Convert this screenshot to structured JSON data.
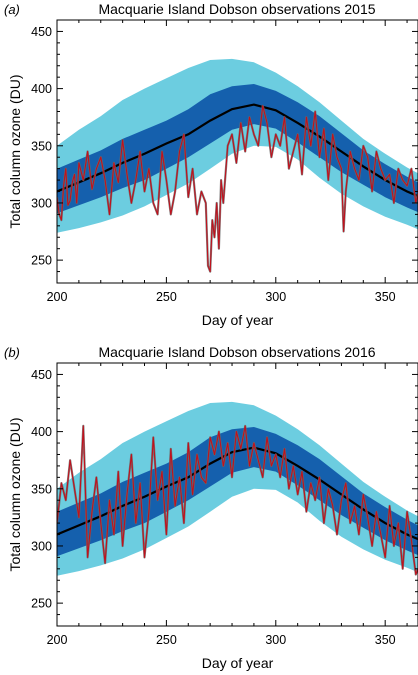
{
  "chart_data": [
    {
      "panel_label": "(a)",
      "type": "line",
      "title": "Macquarie Island Dobson observations 2015",
      "xlabel": "Day of year",
      "ylabel": "Total column ozone (DU)",
      "xlim": [
        200,
        365
      ],
      "ylim": [
        230,
        460
      ],
      "xticks": [
        "200",
        "250",
        "300",
        "350"
      ],
      "yticks": [
        "250",
        "300",
        "350",
        "400",
        "450"
      ],
      "colors": {
        "outer_band": "#6ccde0",
        "inner_band": "#1560ad",
        "mean": "#000000",
        "obs_line": "#c0111d",
        "obs_shadow": "#6b6b6b"
      },
      "climatology_days": [
        200,
        210,
        220,
        230,
        240,
        250,
        260,
        270,
        280,
        290,
        300,
        310,
        320,
        330,
        340,
        350,
        360,
        365
      ],
      "mean": [
        310,
        318,
        326,
        335,
        343,
        352,
        360,
        372,
        382,
        386,
        381,
        370,
        358,
        345,
        332,
        320,
        310,
        306
      ],
      "inner_upper": [
        330,
        338,
        346,
        356,
        364,
        372,
        382,
        395,
        402,
        404,
        398,
        388,
        376,
        361,
        346,
        334,
        323,
        318
      ],
      "inner_lower": [
        291,
        298,
        305,
        313,
        320,
        330,
        340,
        352,
        364,
        369,
        365,
        353,
        340,
        327,
        316,
        305,
        296,
        292
      ],
      "outer_upper": [
        350,
        364,
        376,
        390,
        400,
        409,
        418,
        425,
        426,
        423,
        414,
        402,
        388,
        372,
        356,
        343,
        331,
        326
      ],
      "outer_lower": [
        274,
        278,
        283,
        289,
        297,
        307,
        317,
        330,
        343,
        350,
        349,
        338,
        322,
        308,
        297,
        288,
        281,
        277
      ],
      "observations": {
        "day": [
          200,
          201,
          202,
          203,
          204,
          205,
          206,
          207,
          208,
          209,
          210,
          212,
          214,
          216,
          218,
          220,
          222,
          224,
          226,
          228,
          230,
          232,
          234,
          236,
          238,
          240,
          242,
          244,
          246,
          248,
          250,
          252,
          254,
          256,
          258,
          260,
          262,
          264,
          266,
          268,
          269,
          270,
          271,
          272,
          273,
          274,
          275,
          276,
          278,
          280,
          282,
          284,
          286,
          288,
          290,
          292,
          294,
          296,
          298,
          300,
          302,
          304,
          306,
          308,
          310,
          312,
          314,
          316,
          318,
          320,
          322,
          324,
          326,
          328,
          330,
          331,
          332,
          334,
          336,
          338,
          340,
          342,
          344,
          346,
          348,
          350,
          352,
          354,
          356,
          358,
          360,
          362,
          364,
          365
        ],
        "ozone": [
          305,
          290,
          285,
          315,
          330,
          298,
          302,
          318,
          325,
          300,
          335,
          320,
          345,
          312,
          330,
          340,
          320,
          290,
          335,
          318,
          355,
          325,
          300,
          320,
          345,
          310,
          330,
          300,
          290,
          345,
          320,
          290,
          310,
          345,
          360,
          305,
          330,
          290,
          310,
          300,
          245,
          240,
          285,
          270,
          300,
          260,
          320,
          300,
          350,
          360,
          335,
          370,
          345,
          375,
          360,
          350,
          385,
          370,
          340,
          360,
          350,
          375,
          330,
          345,
          360,
          325,
          375,
          350,
          380,
          340,
          365,
          320,
          360,
          340,
          330,
          275,
          310,
          345,
          330,
          320,
          350,
          340,
          310,
          345,
          330,
          320,
          325,
          300,
          330,
          320,
          315,
          330,
          300,
          308
        ]
      }
    },
    {
      "panel_label": "(b)",
      "type": "line",
      "title": "Macquarie Island Dobson observations 2016",
      "xlabel": "Day of year",
      "ylabel": "Total column ozone (DU)",
      "xlim": [
        200,
        365
      ],
      "ylim": [
        230,
        460
      ],
      "xticks": [
        "200",
        "250",
        "300",
        "350"
      ],
      "yticks": [
        "250",
        "300",
        "350",
        "400",
        "450"
      ],
      "colors": {
        "outer_band": "#6ccde0",
        "inner_band": "#1560ad",
        "mean": "#000000",
        "obs_line": "#c0111d",
        "obs_shadow": "#6b6b6b"
      },
      "climatology_days": [
        200,
        210,
        220,
        230,
        240,
        250,
        260,
        270,
        280,
        290,
        300,
        310,
        320,
        330,
        340,
        350,
        360,
        365
      ],
      "mean": [
        310,
        318,
        326,
        335,
        343,
        352,
        360,
        372,
        382,
        386,
        381,
        370,
        358,
        345,
        332,
        320,
        310,
        306
      ],
      "inner_upper": [
        330,
        338,
        346,
        356,
        364,
        372,
        382,
        395,
        402,
        404,
        398,
        388,
        376,
        361,
        346,
        334,
        323,
        318
      ],
      "inner_lower": [
        291,
        298,
        305,
        313,
        320,
        330,
        340,
        352,
        364,
        369,
        365,
        353,
        340,
        327,
        316,
        305,
        296,
        292
      ],
      "outer_upper": [
        350,
        364,
        376,
        390,
        400,
        409,
        418,
        425,
        426,
        423,
        414,
        402,
        388,
        372,
        356,
        343,
        331,
        326
      ],
      "outer_lower": [
        274,
        278,
        283,
        289,
        297,
        307,
        317,
        330,
        343,
        350,
        349,
        338,
        322,
        308,
        297,
        288,
        281,
        277
      ],
      "observations": {
        "day": [
          200,
          202,
          204,
          206,
          208,
          210,
          212,
          214,
          216,
          218,
          220,
          222,
          224,
          226,
          228,
          230,
          232,
          234,
          236,
          238,
          240,
          242,
          244,
          246,
          248,
          250,
          252,
          254,
          256,
          258,
          260,
          262,
          264,
          266,
          268,
          270,
          272,
          274,
          276,
          278,
          280,
          282,
          284,
          286,
          288,
          290,
          292,
          294,
          296,
          298,
          300,
          302,
          304,
          306,
          308,
          310,
          312,
          314,
          316,
          318,
          320,
          322,
          324,
          326,
          328,
          330,
          332,
          334,
          336,
          338,
          340,
          342,
          344,
          346,
          348,
          350,
          352,
          354,
          356,
          358,
          360,
          362,
          364,
          365
        ],
        "ozone": [
          320,
          355,
          340,
          375,
          350,
          325,
          405,
          290,
          330,
          360,
          320,
          285,
          340,
          310,
          365,
          300,
          345,
          380,
          320,
          355,
          290,
          330,
          395,
          340,
          365,
          310,
          385,
          335,
          360,
          320,
          390,
          345,
          380,
          360,
          355,
          395,
          380,
          400,
          370,
          390,
          360,
          400,
          385,
          405,
          370,
          390,
          375,
          360,
          395,
          370,
          380,
          360,
          385,
          350,
          370,
          345,
          365,
          330,
          355,
          340,
          360,
          320,
          350,
          335,
          310,
          340,
          355,
          320,
          335,
          310,
          345,
          325,
          300,
          330,
          310,
          290,
          335,
          300,
          320,
          280,
          330,
          305,
          275,
          280
        ]
      }
    }
  ]
}
